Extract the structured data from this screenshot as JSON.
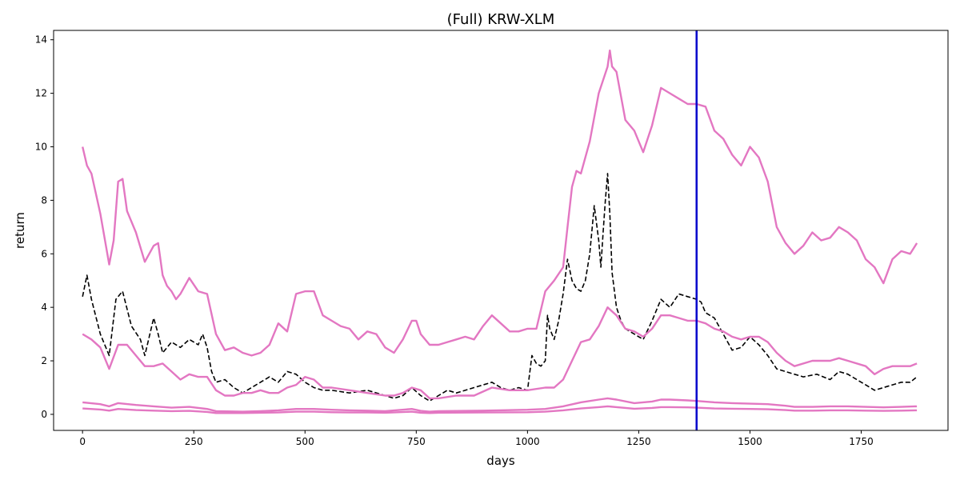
{
  "chart_data": {
    "type": "line",
    "title": "(Full) KRW-XLM",
    "xlabel": "days",
    "ylabel": "return",
    "xlim": [
      -65,
      1945
    ],
    "ylim": [
      -0.6,
      14.35
    ],
    "xticks": [
      0,
      250,
      500,
      750,
      1000,
      1250,
      1500,
      1750
    ],
    "yticks": [
      0,
      2,
      4,
      6,
      8,
      10,
      12,
      14
    ],
    "grid": false,
    "legend": "none",
    "vline": {
      "x": 1380,
      "color": "#0000cc"
    },
    "series": [
      {
        "style": "dashed",
        "color": "#000000",
        "x": [
          0,
          10,
          20,
          40,
          60,
          75,
          90,
          110,
          130,
          140,
          160,
          170,
          180,
          200,
          220,
          240,
          250,
          260,
          270,
          280,
          290,
          300,
          320,
          340,
          360,
          380,
          420,
          440,
          460,
          480,
          500,
          520,
          540,
          560,
          600,
          640,
          680,
          700,
          720,
          740,
          760,
          780,
          800,
          820,
          840,
          880,
          920,
          940,
          960,
          980,
          1000,
          1010,
          1020,
          1030,
          1040,
          1045,
          1050,
          1060,
          1070,
          1080,
          1090,
          1100,
          1110,
          1120,
          1130,
          1140,
          1150,
          1160,
          1165,
          1170,
          1175,
          1180,
          1185,
          1190,
          1200,
          1210,
          1220,
          1240,
          1260,
          1280,
          1300,
          1320,
          1340,
          1360,
          1380,
          1390,
          1400,
          1420,
          1440,
          1460,
          1480,
          1500,
          1520,
          1540,
          1560,
          1600,
          1620,
          1650,
          1680,
          1700,
          1720,
          1740,
          1760,
          1780,
          1800,
          1820,
          1840,
          1860,
          1875
        ],
        "y": [
          4.4,
          5.2,
          4.3,
          3.0,
          2.2,
          4.3,
          4.6,
          3.3,
          2.8,
          2.2,
          3.6,
          3.0,
          2.3,
          2.7,
          2.5,
          2.8,
          2.7,
          2.6,
          3.0,
          2.5,
          1.6,
          1.2,
          1.3,
          1.0,
          0.8,
          1.0,
          1.4,
          1.2,
          1.6,
          1.5,
          1.2,
          1.0,
          0.9,
          0.9,
          0.8,
          0.9,
          0.7,
          0.6,
          0.7,
          1.0,
          0.7,
          0.5,
          0.7,
          0.9,
          0.8,
          1.0,
          1.2,
          1.0,
          0.9,
          1.0,
          0.9,
          2.2,
          1.9,
          1.8,
          2.0,
          3.7,
          3.2,
          2.8,
          3.5,
          4.5,
          5.8,
          5.0,
          4.7,
          4.6,
          5.0,
          6.0,
          7.8,
          6.5,
          5.5,
          6.8,
          8.0,
          9.0,
          7.5,
          5.3,
          4.0,
          3.5,
          3.2,
          3.0,
          2.8,
          3.5,
          4.3,
          4.0,
          4.5,
          4.4,
          4.3,
          4.2,
          3.8,
          3.6,
          3.0,
          2.4,
          2.5,
          2.9,
          2.6,
          2.2,
          1.7,
          1.5,
          1.4,
          1.5,
          1.3,
          1.6,
          1.5,
          1.3,
          1.1,
          0.9,
          1.0,
          1.1,
          1.2,
          1.2,
          1.4
        ]
      },
      {
        "style": "solid",
        "color": "#e377c2",
        "x": [
          0,
          10,
          20,
          40,
          60,
          70,
          80,
          90,
          100,
          120,
          140,
          160,
          170,
          180,
          190,
          200,
          210,
          220,
          240,
          260,
          280,
          300,
          320,
          340,
          360,
          380,
          400,
          420,
          440,
          460,
          480,
          500,
          520,
          540,
          560,
          580,
          600,
          620,
          640,
          660,
          680,
          700,
          720,
          740,
          750,
          760,
          780,
          800,
          820,
          840,
          860,
          880,
          900,
          920,
          940,
          960,
          980,
          1000,
          1020,
          1040,
          1060,
          1080,
          1090,
          1100,
          1110,
          1120,
          1140,
          1160,
          1180,
          1185,
          1190,
          1200,
          1220,
          1240,
          1260,
          1280,
          1300,
          1320,
          1340,
          1360,
          1380,
          1400,
          1420,
          1440,
          1460,
          1480,
          1500,
          1520,
          1540,
          1560,
          1580,
          1600,
          1620,
          1640,
          1660,
          1680,
          1700,
          1720,
          1740,
          1760,
          1780,
          1800,
          1820,
          1840,
          1860,
          1875
        ],
        "y": [
          10.0,
          9.3,
          9.0,
          7.5,
          5.6,
          6.5,
          8.7,
          8.8,
          7.6,
          6.8,
          5.7,
          6.3,
          6.4,
          5.2,
          4.8,
          4.6,
          4.3,
          4.5,
          5.1,
          4.6,
          4.5,
          3.0,
          2.4,
          2.5,
          2.3,
          2.2,
          2.3,
          2.6,
          3.4,
          3.1,
          4.5,
          4.6,
          4.6,
          3.7,
          3.5,
          3.3,
          3.2,
          2.8,
          3.1,
          3.0,
          2.5,
          2.3,
          2.8,
          3.5,
          3.5,
          3.0,
          2.6,
          2.6,
          2.7,
          2.8,
          2.9,
          2.8,
          3.3,
          3.7,
          3.4,
          3.1,
          3.1,
          3.2,
          3.2,
          4.6,
          5.0,
          5.5,
          7.0,
          8.5,
          9.1,
          9.0,
          10.2,
          12.0,
          13.0,
          13.6,
          13.0,
          12.8,
          11.0,
          10.6,
          9.8,
          10.8,
          12.2,
          12.0,
          11.8,
          11.6,
          11.6,
          11.5,
          10.6,
          10.3,
          9.7,
          9.3,
          10.0,
          9.6,
          8.7,
          7.0,
          6.4,
          6.0,
          6.3,
          6.8,
          6.5,
          6.6,
          7.0,
          6.8,
          6.5,
          5.8,
          5.5,
          4.9,
          5.8,
          6.1,
          6.0,
          6.4
        ]
      },
      {
        "style": "solid",
        "color": "#e377c2",
        "x": [
          0,
          20,
          40,
          60,
          80,
          100,
          120,
          140,
          160,
          180,
          200,
          220,
          240,
          260,
          280,
          300,
          320,
          340,
          360,
          380,
          400,
          420,
          440,
          460,
          480,
          500,
          520,
          540,
          560,
          600,
          640,
          680,
          700,
          720,
          740,
          760,
          780,
          800,
          840,
          880,
          920,
          960,
          1000,
          1040,
          1060,
          1080,
          1100,
          1120,
          1140,
          1160,
          1180,
          1200,
          1220,
          1240,
          1260,
          1280,
          1300,
          1320,
          1340,
          1360,
          1380,
          1400,
          1420,
          1440,
          1460,
          1480,
          1500,
          1520,
          1540,
          1560,
          1580,
          1600,
          1640,
          1680,
          1700,
          1720,
          1760,
          1780,
          1800,
          1820,
          1840,
          1860,
          1875
        ],
        "y": [
          3.0,
          2.8,
          2.5,
          1.7,
          2.6,
          2.6,
          2.2,
          1.8,
          1.8,
          1.9,
          1.6,
          1.3,
          1.5,
          1.4,
          1.4,
          0.9,
          0.7,
          0.7,
          0.8,
          0.8,
          0.9,
          0.8,
          0.8,
          1.0,
          1.1,
          1.4,
          1.3,
          1.0,
          1.0,
          0.9,
          0.8,
          0.7,
          0.7,
          0.8,
          1.0,
          0.9,
          0.6,
          0.6,
          0.7,
          0.7,
          1.0,
          0.9,
          0.9,
          1.0,
          1.0,
          1.3,
          2.0,
          2.7,
          2.8,
          3.3,
          4.0,
          3.7,
          3.2,
          3.1,
          2.9,
          3.2,
          3.7,
          3.7,
          3.6,
          3.5,
          3.5,
          3.4,
          3.2,
          3.1,
          2.9,
          2.8,
          2.9,
          2.9,
          2.7,
          2.3,
          2.0,
          1.8,
          2.0,
          2.0,
          2.1,
          2.0,
          1.8,
          1.5,
          1.7,
          1.8,
          1.8,
          1.8,
          1.9
        ]
      },
      {
        "style": "solid",
        "color": "#e377c2",
        "x": [
          0,
          40,
          60,
          80,
          120,
          160,
          200,
          240,
          280,
          300,
          360,
          400,
          440,
          480,
          520,
          560,
          600,
          640,
          680,
          740,
          760,
          780,
          800,
          900,
          1000,
          1040,
          1080,
          1120,
          1160,
          1180,
          1200,
          1240,
          1280,
          1300,
          1320,
          1360,
          1380,
          1420,
          1460,
          1500,
          1540,
          1580,
          1600,
          1640,
          1680,
          1720,
          1760,
          1800,
          1840,
          1875
        ],
        "y": [
          0.45,
          0.38,
          0.3,
          0.42,
          0.35,
          0.3,
          0.25,
          0.28,
          0.2,
          0.12,
          0.1,
          0.12,
          0.15,
          0.2,
          0.2,
          0.17,
          0.15,
          0.14,
          0.12,
          0.2,
          0.13,
          0.1,
          0.12,
          0.14,
          0.17,
          0.2,
          0.3,
          0.45,
          0.55,
          0.6,
          0.55,
          0.42,
          0.48,
          0.55,
          0.55,
          0.52,
          0.5,
          0.45,
          0.42,
          0.4,
          0.38,
          0.32,
          0.28,
          0.28,
          0.3,
          0.3,
          0.28,
          0.26,
          0.28,
          0.3
        ]
      },
      {
        "style": "solid",
        "color": "#e377c2",
        "x": [
          0,
          40,
          60,
          80,
          120,
          160,
          200,
          240,
          280,
          300,
          360,
          400,
          440,
          480,
          520,
          560,
          600,
          640,
          680,
          740,
          760,
          780,
          800,
          900,
          1000,
          1040,
          1080,
          1120,
          1160,
          1180,
          1200,
          1240,
          1280,
          1300,
          1320,
          1360,
          1380,
          1420,
          1460,
          1500,
          1540,
          1580,
          1600,
          1640,
          1680,
          1720,
          1760,
          1800,
          1840,
          1875
        ],
        "y": [
          0.22,
          0.18,
          0.14,
          0.2,
          0.16,
          0.14,
          0.12,
          0.13,
          0.09,
          0.05,
          0.05,
          0.06,
          0.07,
          0.1,
          0.1,
          0.08,
          0.07,
          0.07,
          0.06,
          0.1,
          0.06,
          0.05,
          0.06,
          0.07,
          0.08,
          0.1,
          0.15,
          0.22,
          0.27,
          0.3,
          0.27,
          0.21,
          0.24,
          0.27,
          0.27,
          0.26,
          0.25,
          0.22,
          0.21,
          0.2,
          0.19,
          0.16,
          0.14,
          0.14,
          0.15,
          0.15,
          0.14,
          0.13,
          0.14,
          0.15
        ]
      }
    ]
  }
}
